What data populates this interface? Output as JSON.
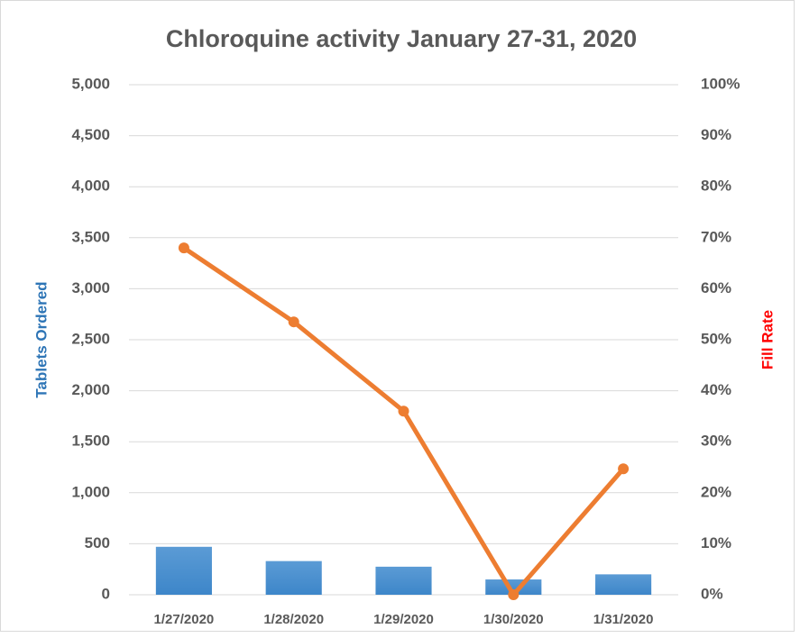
{
  "chart_data": {
    "type": "bar_line",
    "title": "Chloroquine activity January 27-31, 2020",
    "y_label": "Tablets Ordered",
    "y2_label": "Fill Rate",
    "categories": [
      "1/27/2020",
      "1/28/2020",
      "1/29/2020",
      "1/30/2020",
      "1/31/2020"
    ],
    "series": [
      {
        "type": "bar",
        "color": "#5b9bd5",
        "values": [
          470,
          330,
          275,
          150,
          200
        ]
      },
      {
        "type": "line",
        "axis": "y2",
        "color": "#ed7d31",
        "values": [
          68,
          53.5,
          36,
          0,
          24.7
        ]
      }
    ],
    "ylim": [
      0,
      5000
    ],
    "yticks": [
      0,
      500,
      {
        "value": 1000,
        "label": "1,000"
      },
      {
        "value": 1500,
        "label": "1,500"
      },
      {
        "value": 2000,
        "label": "2,000"
      },
      {
        "value": 2500,
        "label": "2,500"
      },
      {
        "value": 3000,
        "label": "3,000"
      },
      {
        "value": 3500,
        "label": "3,500"
      },
      {
        "value": 4000,
        "label": "4,000"
      },
      {
        "value": 4500,
        "label": "4,500"
      },
      {
        "value": 5000,
        "label": "5,000"
      }
    ],
    "y2lim": [
      0,
      100
    ],
    "y2ticks": [
      {
        "value": 0,
        "label": "0%"
      },
      {
        "value": 10,
        "label": "10%"
      },
      {
        "value": 20,
        "label": "20%"
      },
      {
        "value": 30,
        "label": "30%"
      },
      {
        "value": 40,
        "label": "40%"
      },
      {
        "value": 50,
        "label": "50%"
      },
      {
        "value": 60,
        "label": "60%"
      },
      {
        "value": 70,
        "label": "70%"
      },
      {
        "value": 80,
        "label": "80%"
      },
      {
        "value": 90,
        "label": "90%"
      },
      {
        "value": 100,
        "label": "100%"
      }
    ],
    "grid": true
  }
}
